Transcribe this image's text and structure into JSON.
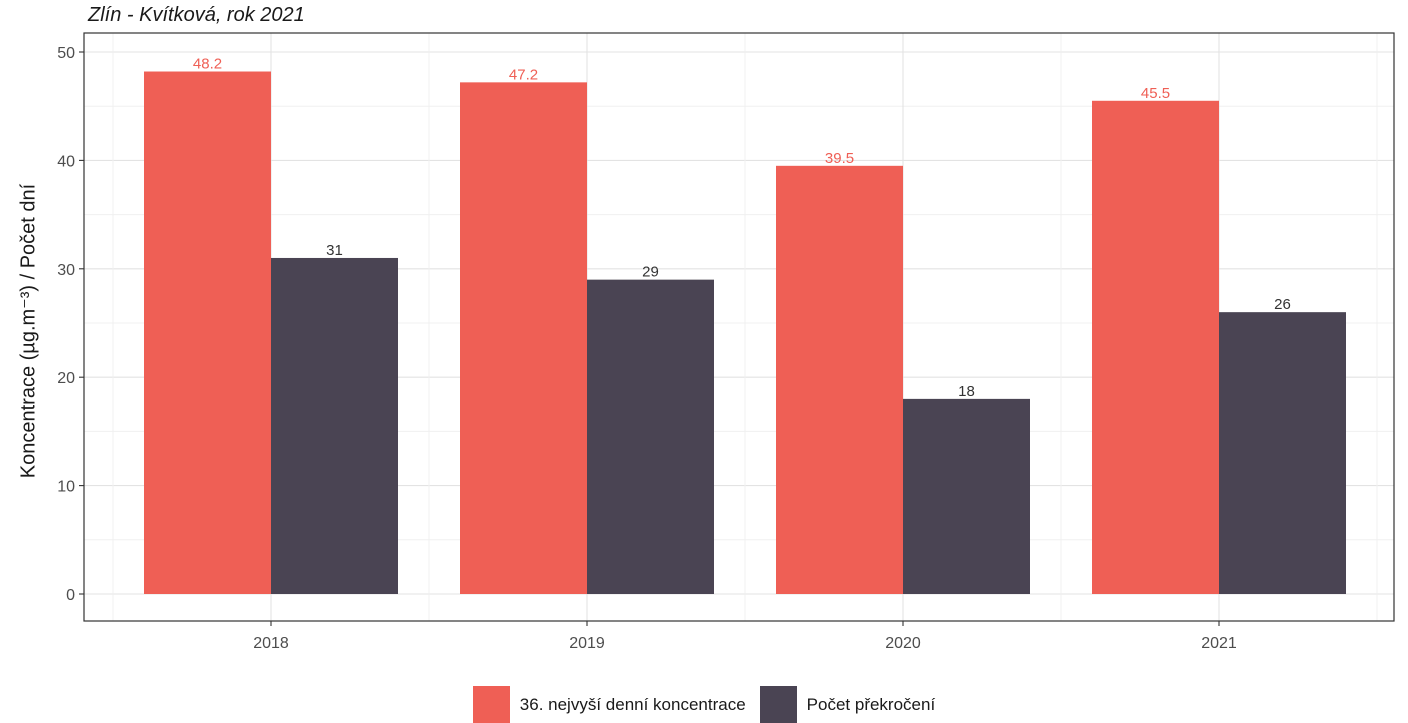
{
  "chart_data": {
    "type": "bar",
    "title": "Zlín - Kvítková, rok 2021",
    "xlabel": "",
    "ylabel": "Koncentrace (µg.m⁻³) / Počet dní",
    "categories": [
      "2018",
      "2019",
      "2020",
      "2021"
    ],
    "series": [
      {
        "name": "36. nejvyší denní koncentrace",
        "values": [
          48.2,
          47.2,
          39.5,
          45.5
        ],
        "color": "#ef5f55"
      },
      {
        "name": "Počet překročení",
        "values": [
          31,
          29,
          18,
          26
        ],
        "color": "#4a4453"
      }
    ],
    "ylim": [
      0,
      50
    ],
    "yticks": [
      0,
      10,
      20,
      30,
      40,
      50
    ],
    "grid": true,
    "legend_position": "bottom"
  }
}
